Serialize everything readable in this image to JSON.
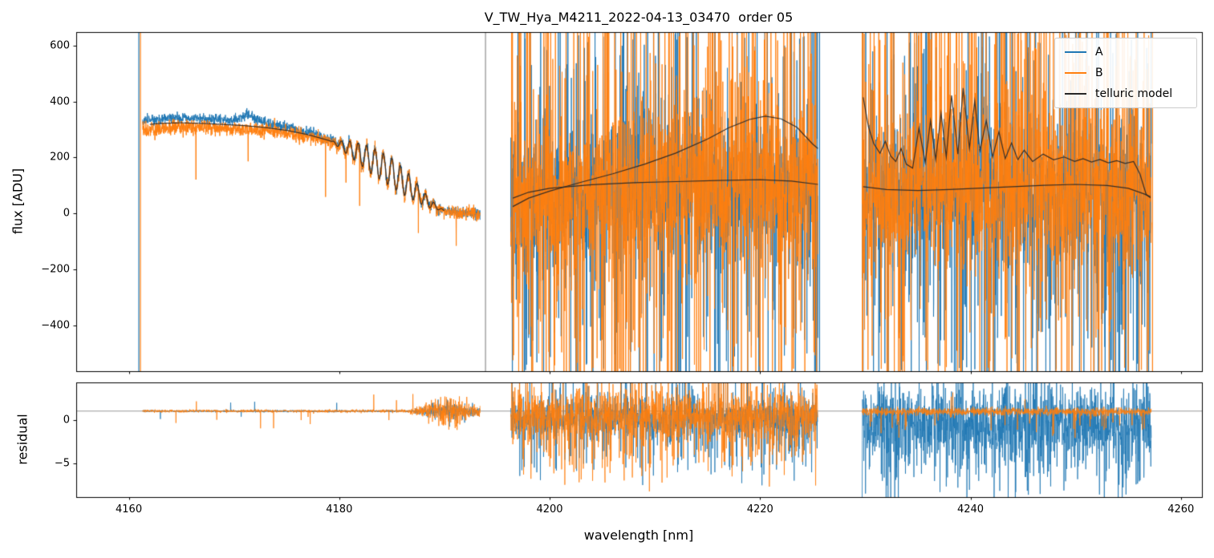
{
  "chart_data": {
    "type": "line",
    "title": "V_TW_Hya_M4211_2022-04-13_03470  order 05",
    "xlabel": "wavelength [nm]",
    "xlim": [
      4155,
      4262
    ],
    "xticks": [
      4160,
      4180,
      4200,
      4220,
      4240,
      4260
    ],
    "colors": {
      "A": "#1f77b4",
      "B": "#ff7f0e",
      "model": "#262626",
      "refline": "#999999",
      "spine": "#000000"
    },
    "flux_panel": {
      "ylabel": "flux [ADU]",
      "ylim": [
        -563,
        648
      ],
      "yticks": [
        600,
        400,
        200,
        0,
        -200,
        -400
      ],
      "legend": [
        {
          "series": "A",
          "label": "A"
        },
        {
          "series": "B",
          "label": "B"
        },
        {
          "series": "model",
          "label": "telluric model"
        }
      ]
    },
    "residual_panel": {
      "ylabel": "residual",
      "ylim": [
        -8.9,
        4.3
      ],
      "yticks": [
        0,
        -5
      ],
      "refline": 1
    },
    "artifacts": [
      {
        "x": 4160.95,
        "series": "A"
      },
      {
        "x": 4161.1,
        "series": "B"
      },
      {
        "x": 4193.9,
        "series": "model"
      },
      {
        "x": 4225.65,
        "series": "A"
      },
      {
        "x": 4229.75,
        "series": "B"
      },
      {
        "x": 4257.3,
        "series": "B"
      }
    ],
    "segments": [
      {
        "name": "segment-4161-4193",
        "x_range": [
          4161.3,
          4193.4
        ],
        "flux": {
          "kind": "smooth",
          "base": [
            [
              4161.3,
              316
            ],
            [
              4163,
              322
            ],
            [
              4165,
              324
            ],
            [
              4167,
              322
            ],
            [
              4169,
              318
            ],
            [
              4171,
              314
            ],
            [
              4173,
              307
            ],
            [
              4175,
              297
            ],
            [
              4177,
              282
            ],
            [
              4179,
              261
            ],
            [
              4180,
              247
            ],
            [
              4181,
              231
            ],
            [
              4182,
              212
            ],
            [
              4183,
              191
            ],
            [
              4184,
              169
            ],
            [
              4185,
              146
            ],
            [
              4186,
              117
            ],
            [
              4187,
              87
            ],
            [
              4188,
              54
            ],
            [
              4189,
              27
            ],
            [
              4190,
              10
            ],
            [
              4191,
              3
            ],
            [
              4192,
              0
            ],
            [
              4193.4,
              -2
            ]
          ],
          "fringe_amp": [
            [
              4179.2,
              0
            ],
            [
              4181,
              28
            ],
            [
              4183,
              48
            ],
            [
              4185,
              52
            ],
            [
              4186.5,
              45
            ],
            [
              4188,
              25
            ],
            [
              4189.3,
              8
            ],
            [
              4190,
              0
            ]
          ],
          "fringe_period": 0.8,
          "fringe_center": 4180,
          "a_offset": [
            [
              4161.3,
              18
            ],
            [
              4169,
              16
            ],
            [
              4170.5,
              22
            ],
            [
              4171.2,
              40
            ],
            [
              4172,
              28
            ],
            [
              4173.5,
              15
            ],
            [
              4176,
              9
            ],
            [
              4179,
              4
            ],
            [
              4182,
              2
            ],
            [
              4193.4,
              1
            ]
          ],
          "b_offset": [
            [
              4161.3,
              -17
            ],
            [
              4170,
              -14
            ],
            [
              4175,
              -9
            ],
            [
              4180,
              -4
            ],
            [
              4193.4,
              -1
            ]
          ],
          "noise_a": 9,
          "noise_b": 13,
          "spike_prob_b": 0.004,
          "spike_amp_b": 160,
          "model_x_min": 4162,
          "model_x_max": 4190
        },
        "residual": {
          "a": {
            "mean": 1,
            "noise": [
              [
                4161.5,
                0.05
              ],
              [
                4186.5,
                0.06
              ],
              [
                4188.5,
                0.35
              ],
              [
                4190,
                0.7
              ],
              [
                4191.5,
                0.45
              ],
              [
                4192.6,
                0.3
              ]
            ],
            "tail_prob": 0.004,
            "tail_amp": 1.2,
            "tail_neg_frac": 0.5
          },
          "b": {
            "mean": 1,
            "noise": [
              [
                4161.5,
                0.07
              ],
              [
                4186.5,
                0.09
              ],
              [
                4188.5,
                0.6
              ],
              [
                4190,
                1.1
              ],
              [
                4191.5,
                0.7
              ],
              [
                4192.6,
                0.4
              ]
            ],
            "tail_prob": 0.006,
            "tail_amp": 1.6,
            "tail_neg_frac": 0.6
          }
        }
      },
      {
        "name": "segment-4196-4225",
        "x_range": [
          4196.3,
          4225.5
        ],
        "flux": {
          "kind": "noisy",
          "base": [
            [
              4196.3,
              40
            ],
            [
              4200,
              70
            ],
            [
              4205,
              90
            ],
            [
              4210,
              95
            ],
            [
              4215,
              100
            ],
            [
              4220,
              110
            ],
            [
              4225.5,
              100
            ]
          ],
          "noise_a": 115,
          "noise_b": 140,
          "tail_prob_a": 0.2,
          "tail_amp_a": 520,
          "tail_neg_frac_a": 0.5,
          "tail_prob_b": 0.24,
          "tail_amp_b": 640,
          "tail_neg_frac_b": 0.5,
          "model_curves": [
            [
              [
                4196.5,
                25
              ],
              [
                4198,
                55
              ],
              [
                4200,
                80
              ],
              [
                4203,
                112
              ],
              [
                4206,
                142
              ],
              [
                4209,
                176
              ],
              [
                4212,
                216
              ],
              [
                4215,
                266
              ],
              [
                4217,
                306
              ],
              [
                4219,
                336
              ],
              [
                4220.5,
                348
              ],
              [
                4222,
                338
              ],
              [
                4223.5,
                308
              ],
              [
                4225,
                248
              ],
              [
                4225.5,
                232
              ]
            ],
            [
              [
                4196.5,
                55
              ],
              [
                4198,
                76
              ],
              [
                4200,
                90
              ],
              [
                4204,
                103
              ],
              [
                4208,
                110
              ],
              [
                4212,
                114
              ],
              [
                4216,
                118
              ],
              [
                4220,
                121
              ],
              [
                4223,
                116
              ],
              [
                4225.5,
                104
              ]
            ]
          ]
        },
        "residual": {
          "a": {
            "mean": 0.3,
            "noise": 1.1,
            "tail_prob": 0.16,
            "tail_amp": 4.5,
            "tail_neg_frac": 0.7
          },
          "b": {
            "mean": 0.5,
            "noise": 1.4,
            "tail_prob": 0.18,
            "tail_amp": 5.0,
            "tail_neg_frac": 0.7
          }
        }
      },
      {
        "name": "segment-4229-4257",
        "x_range": [
          4229.7,
          4257.2
        ],
        "flux": {
          "kind": "noisy",
          "base": [
            [
              4229.7,
              60
            ],
            [
              4235,
              85
            ],
            [
              4240,
              100
            ],
            [
              4245,
              95
            ],
            [
              4250,
              90
            ],
            [
              4257.2,
              80
            ]
          ],
          "noise_a": 125,
          "noise_b": 135,
          "tail_prob_a": 0.22,
          "tail_amp_a": 560,
          "tail_neg_frac_a": 0.65,
          "tail_prob_b": 0.22,
          "tail_amp_b": 600,
          "tail_neg_frac_b": 0.4,
          "model_curves": [
            [
              [
                4229.8,
                415
              ],
              [
                4230.3,
                310
              ],
              [
                4230.8,
                250
              ],
              [
                4231.4,
                215
              ],
              [
                4231.9,
                258
              ],
              [
                4232.4,
                206
              ],
              [
                4232.9,
                186
              ],
              [
                4233.4,
                232
              ],
              [
                4233.9,
                176
              ],
              [
                4234.5,
                162
              ],
              [
                4235.1,
                305
              ],
              [
                4235.7,
                182
              ],
              [
                4236.2,
                332
              ],
              [
                4236.7,
                192
              ],
              [
                4237.2,
                358
              ],
              [
                4237.7,
                202
              ],
              [
                4238.2,
                422
              ],
              [
                4238.8,
                212
              ],
              [
                4239.3,
                448
              ],
              [
                4239.9,
                232
              ],
              [
                4240.4,
                402
              ],
              [
                4240.9,
                226
              ],
              [
                4241.5,
                332
              ],
              [
                4242.1,
                202
              ],
              [
                4242.7,
                292
              ],
              [
                4243.3,
                196
              ],
              [
                4243.9,
                252
              ],
              [
                4244.5,
                192
              ],
              [
                4245.1,
                226
              ],
              [
                4245.9,
                186
              ],
              [
                4246.9,
                212
              ],
              [
                4247.9,
                192
              ],
              [
                4248.9,
                202
              ],
              [
                4249.9,
                186
              ],
              [
                4250.7,
                196
              ],
              [
                4251.5,
                184
              ],
              [
                4252.3,
                193
              ],
              [
                4253.1,
                181
              ],
              [
                4253.9,
                189
              ],
              [
                4254.7,
                179
              ],
              [
                4255.5,
                186
              ],
              [
                4256.1,
                142
              ],
              [
                4256.7,
                68
              ],
              [
                4257.1,
                56
              ]
            ],
            [
              [
                4229.8,
                96
              ],
              [
                4232,
                86
              ],
              [
                4235,
                82
              ],
              [
                4238,
                86
              ],
              [
                4241,
                91
              ],
              [
                4244,
                96
              ],
              [
                4247,
                101
              ],
              [
                4250,
                104
              ],
              [
                4253,
                100
              ],
              [
                4255,
                90
              ],
              [
                4256.5,
                70
              ],
              [
                4257.1,
                60
              ]
            ]
          ]
        },
        "residual": {
          "a": {
            "mean": -0.2,
            "noise": 2.0,
            "tail_prob": 0.22,
            "tail_amp": 5.5,
            "tail_neg_frac": 0.85
          },
          "b": {
            "mean": 0.95,
            "noise": 0.22,
            "tail_prob": 0.03,
            "tail_amp": 2.0,
            "tail_neg_frac": 0.9
          }
        }
      }
    ]
  }
}
